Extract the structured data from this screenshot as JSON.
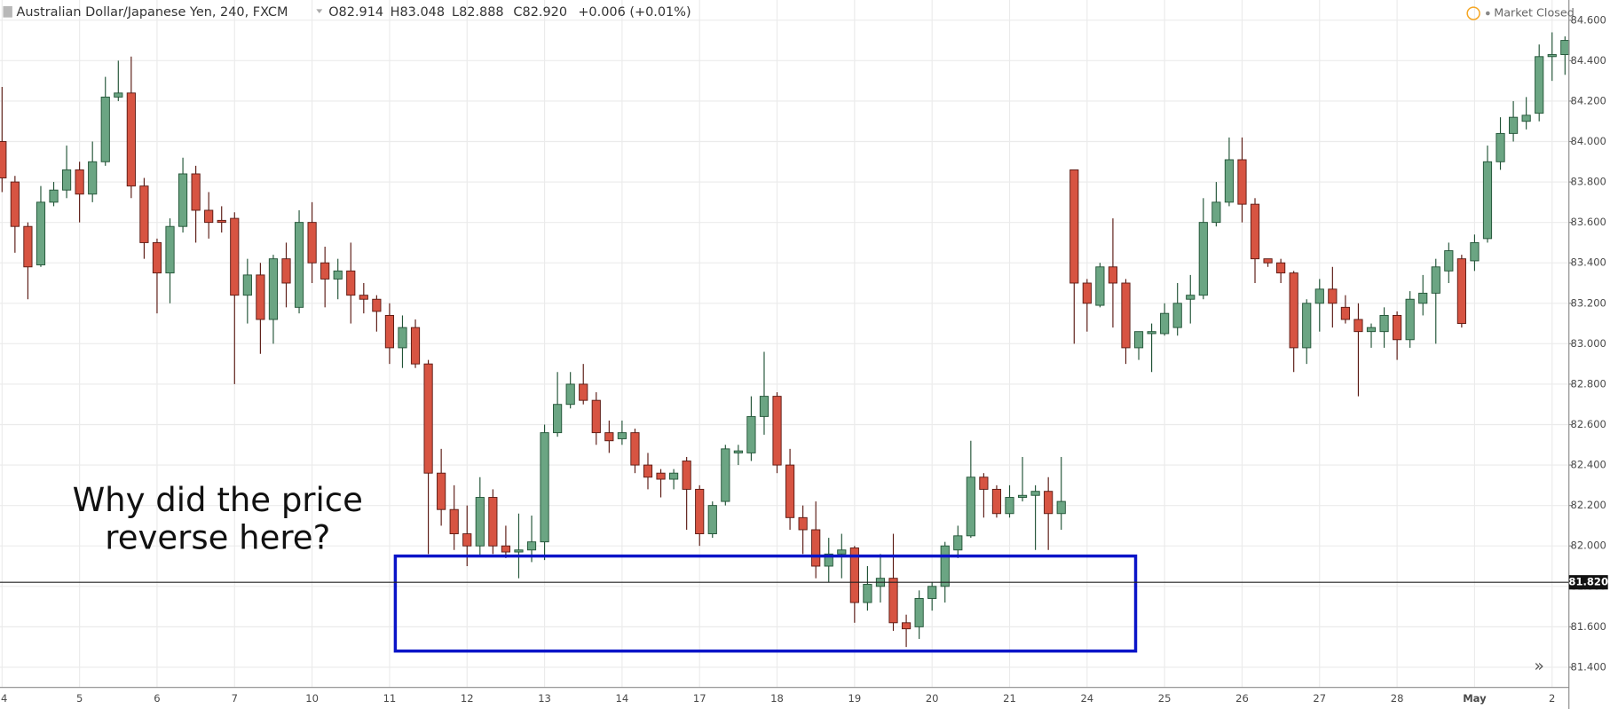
{
  "chart_data": {
    "type": "candlestick",
    "title": "Australian Dollar/Japanese Yen, 240, FXCM",
    "ohlc_header": [
      "O82.914",
      "H83.048",
      "L82.888",
      "C82.920"
    ],
    "change": "+0.006 (+0.01%)",
    "status": "Market Closed",
    "annotation": [
      "Why did the price",
      "reverse here?"
    ],
    "categories": [
      "4",
      null,
      null,
      null,
      null,
      null,
      "5",
      null,
      null,
      null,
      null,
      null,
      "6",
      null,
      null,
      null,
      null,
      null,
      "7",
      null,
      null,
      null,
      null,
      null,
      "10",
      null,
      null,
      null,
      null,
      null,
      "11",
      null,
      null,
      null,
      null,
      null,
      "12",
      null,
      null,
      null,
      null,
      null,
      "13",
      null,
      null,
      null,
      null,
      null,
      "14",
      null,
      null,
      null,
      null,
      null,
      "17",
      null,
      null,
      null,
      null,
      null,
      "18",
      null,
      null,
      null,
      null,
      null,
      "19",
      null,
      null,
      null,
      null,
      null,
      "20",
      null,
      null,
      null,
      null,
      null,
      "21",
      null,
      null,
      null,
      null,
      null,
      "24",
      null,
      null,
      null,
      null,
      null,
      "25",
      null,
      null,
      null,
      null,
      null,
      "26",
      null,
      null,
      null,
      null,
      null,
      "27",
      null,
      null,
      null,
      null,
      null,
      "28",
      null,
      null,
      null,
      null,
      null,
      "May",
      null,
      null,
      null,
      null,
      null,
      "2",
      null
    ],
    "open": [
      84.0,
      83.8,
      83.58,
      83.39,
      83.7,
      83.76,
      83.86,
      83.74,
      83.9,
      84.22,
      84.24,
      83.78,
      83.5,
      83.35,
      83.58,
      83.84,
      83.66,
      83.61,
      83.62,
      83.24,
      83.34,
      83.12,
      83.42,
      83.18,
      83.6,
      83.4,
      83.32,
      83.36,
      83.24,
      83.22,
      83.14,
      82.98,
      83.08,
      82.9,
      82.36,
      82.18,
      82.06,
      82.0,
      82.24,
      82.0,
      81.97,
      81.98,
      82.02,
      82.56,
      82.7,
      82.8,
      82.72,
      82.56,
      82.53,
      82.56,
      82.4,
      82.36,
      82.33,
      82.42,
      82.28,
      82.06,
      82.22,
      82.46,
      82.46,
      82.64,
      82.74,
      82.4,
      82.14,
      82.08,
      81.9,
      81.96,
      81.99,
      81.72,
      81.8,
      81.84,
      81.62,
      81.6,
      81.74,
      81.8,
      81.98,
      82.05,
      82.34,
      82.28,
      82.16,
      82.24,
      82.25,
      82.27,
      82.16,
      83.86,
      83.3,
      83.19,
      83.38,
      83.3,
      82.98,
      83.05,
      83.05,
      83.08,
      83.22,
      83.24,
      83.6,
      83.7,
      83.91,
      83.69,
      83.42,
      83.4,
      83.35,
      82.98,
      83.2,
      83.27,
      83.18,
      83.12,
      83.06,
      83.06,
      83.14,
      83.02,
      83.2,
      83.25,
      83.36,
      83.42,
      83.41,
      83.52,
      83.9,
      84.04,
      84.1,
      84.14,
      84.42,
      84.43
    ],
    "high": [
      84.27,
      83.83,
      83.6,
      83.78,
      83.8,
      83.98,
      83.9,
      84.0,
      84.32,
      84.4,
      84.42,
      83.82,
      83.52,
      83.62,
      83.92,
      83.88,
      83.75,
      83.68,
      83.65,
      83.42,
      83.4,
      83.44,
      83.5,
      83.66,
      83.7,
      83.48,
      83.42,
      83.5,
      83.3,
      83.24,
      83.2,
      83.14,
      83.12,
      82.92,
      82.48,
      82.3,
      82.2,
      82.34,
      82.28,
      82.1,
      82.16,
      82.15,
      82.6,
      82.86,
      82.86,
      82.9,
      82.76,
      82.62,
      82.62,
      82.58,
      82.46,
      82.38,
      82.38,
      82.44,
      82.3,
      82.22,
      82.5,
      82.5,
      82.74,
      82.96,
      82.76,
      82.48,
      82.2,
      82.22,
      82.04,
      82.06,
      82.0,
      81.9,
      81.96,
      82.06,
      81.66,
      81.78,
      81.82,
      82.02,
      82.1,
      82.52,
      82.36,
      82.3,
      82.3,
      82.44,
      82.3,
      82.34,
      82.44,
      83.86,
      83.32,
      83.4,
      83.62,
      83.32,
      83.06,
      83.1,
      83.2,
      83.3,
      83.34,
      83.72,
      83.8,
      84.02,
      84.02,
      83.72,
      83.42,
      83.42,
      83.36,
      83.22,
      83.32,
      83.38,
      83.24,
      83.2,
      83.1,
      83.18,
      83.16,
      83.26,
      83.34,
      83.42,
      83.5,
      83.44,
      83.54,
      83.98,
      84.12,
      84.2,
      84.22,
      84.48,
      84.54,
      84.52
    ],
    "low": [
      83.75,
      83.45,
      83.22,
      83.38,
      83.68,
      83.72,
      83.6,
      83.7,
      83.88,
      84.2,
      83.72,
      83.42,
      83.15,
      83.2,
      83.55,
      83.5,
      83.52,
      83.55,
      82.8,
      83.1,
      82.95,
      83.0,
      83.18,
      83.15,
      83.3,
      83.18,
      83.22,
      83.1,
      83.15,
      83.06,
      82.9,
      82.88,
      82.88,
      81.96,
      82.1,
      81.98,
      81.9,
      81.95,
      81.96,
      81.94,
      81.84,
      81.92,
      81.93,
      82.54,
      82.68,
      82.7,
      82.5,
      82.46,
      82.5,
      82.36,
      82.28,
      82.24,
      82.28,
      82.08,
      82.0,
      82.04,
      82.2,
      82.4,
      82.42,
      82.55,
      82.36,
      82.08,
      81.96,
      81.84,
      81.82,
      81.84,
      81.62,
      81.68,
      81.72,
      81.58,
      81.5,
      81.54,
      81.68,
      81.72,
      81.94,
      82.04,
      82.14,
      82.14,
      82.14,
      82.22,
      81.98,
      81.98,
      82.08,
      83.0,
      83.06,
      83.18,
      83.08,
      82.9,
      82.92,
      82.86,
      83.04,
      83.04,
      83.1,
      83.22,
      83.58,
      83.68,
      83.6,
      83.3,
      83.38,
      83.3,
      82.86,
      82.9,
      83.06,
      83.08,
      83.1,
      82.74,
      82.98,
      82.98,
      82.92,
      82.98,
      83.14,
      83.0,
      83.3,
      83.08,
      83.36,
      83.5,
      83.86,
      84.0,
      84.06,
      84.1,
      84.3,
      84.33
    ],
    "close": [
      83.82,
      83.58,
      83.38,
      83.7,
      83.76,
      83.86,
      83.74,
      83.9,
      84.22,
      84.24,
      83.78,
      83.5,
      83.35,
      83.58,
      83.84,
      83.66,
      83.6,
      83.6,
      83.24,
      83.34,
      83.12,
      83.42,
      83.3,
      83.6,
      83.4,
      83.32,
      83.36,
      83.24,
      83.22,
      83.16,
      82.98,
      83.08,
      82.9,
      82.36,
      82.18,
      82.06,
      82.0,
      82.24,
      82.0,
      81.97,
      81.98,
      82.02,
      82.56,
      82.7,
      82.8,
      82.72,
      82.56,
      82.52,
      82.56,
      82.4,
      82.34,
      82.33,
      82.36,
      82.28,
      82.06,
      82.2,
      82.48,
      82.47,
      82.64,
      82.74,
      82.4,
      82.14,
      82.08,
      81.9,
      81.96,
      81.98,
      81.72,
      81.81,
      81.84,
      81.62,
      81.59,
      81.74,
      81.8,
      82.0,
      82.05,
      82.34,
      82.28,
      82.16,
      82.24,
      82.25,
      82.27,
      82.16,
      82.22,
      83.3,
      83.2,
      83.38,
      83.3,
      82.98,
      83.06,
      83.06,
      83.15,
      83.2,
      83.24,
      83.6,
      83.7,
      83.91,
      83.69,
      83.42,
      83.4,
      83.35,
      82.98,
      83.2,
      83.27,
      83.2,
      83.12,
      83.06,
      83.08,
      83.14,
      83.02,
      83.22,
      83.25,
      83.38,
      83.46,
      83.1,
      83.5,
      83.9,
      84.04,
      84.12,
      84.13,
      84.42,
      84.43,
      84.5
    ],
    "up_color": "#6ba583",
    "down_color": "#d75442",
    "ylim": [
      81.3,
      84.7
    ],
    "yticks": [
      {
        "value": 81.4,
        "label": "81.400"
      },
      {
        "value": 81.6,
        "label": "81.600"
      },
      {
        "value": 81.8,
        "label": "81.800"
      },
      {
        "value": 82.0,
        "label": "82.000"
      },
      {
        "value": 82.2,
        "label": "82.200"
      },
      {
        "value": 82.4,
        "label": "82.400"
      },
      {
        "value": 82.6,
        "label": "82.600"
      },
      {
        "value": 82.8,
        "label": "82.800"
      },
      {
        "value": 83.0,
        "label": "83.000"
      },
      {
        "value": 83.2,
        "label": "83.200"
      },
      {
        "value": 83.4,
        "label": "83.400"
      },
      {
        "value": 83.6,
        "label": "83.600"
      },
      {
        "value": 83.8,
        "label": "83.800"
      },
      {
        "value": 84.0,
        "label": "84.000"
      },
      {
        "value": 84.2,
        "label": "84.200"
      },
      {
        "value": 84.4,
        "label": "84.400"
      },
      {
        "value": 84.6,
        "label": "84.600"
      }
    ],
    "grid": true,
    "price_line": {
      "value": 81.82,
      "label": "81.820"
    },
    "highlight_box": {
      "ylim": [
        81.48,
        81.95
      ],
      "color": "#0a14c8"
    }
  }
}
